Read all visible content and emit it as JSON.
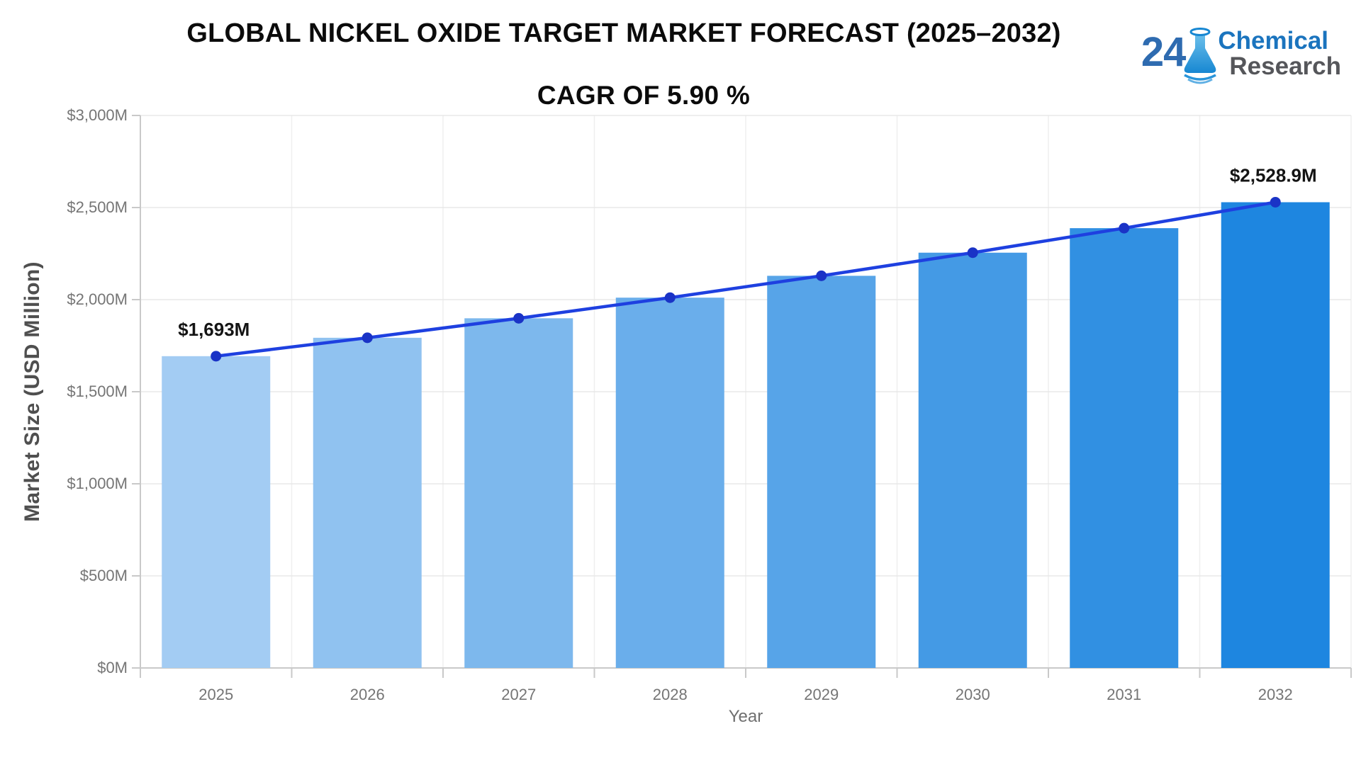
{
  "title": "GLOBAL NICKEL OXIDE TARGET MARKET FORECAST (2025–2032)",
  "subtitle": "CAGR OF 5.90 %",
  "logo": {
    "number": "24",
    "word1": "Chemical",
    "word2": "Research",
    "number_color": "#2E6BB0",
    "word1_color": "#1B74BE",
    "word2_color": "#55565A",
    "flask_color": "#1B8CD6"
  },
  "chart_data": {
    "type": "bar",
    "title": "GLOBAL NICKEL OXIDE TARGET MARKET FORECAST (2025–2032)",
    "subtitle": "CAGR OF 5.90 %",
    "categories": [
      "2025",
      "2026",
      "2027",
      "2028",
      "2029",
      "2030",
      "2031",
      "2032"
    ],
    "series": [
      {
        "name": "Market Size bars",
        "type": "bar",
        "values": [
          1693,
          1792.9,
          1898.7,
          2010.7,
          2129.3,
          2254.9,
          2388.0,
          2528.9
        ]
      },
      {
        "name": "Market Size trend line",
        "type": "line",
        "values": [
          1693,
          1792.9,
          1898.7,
          2010.7,
          2129.3,
          2254.9,
          2388.0,
          2528.9
        ]
      }
    ],
    "annotations": [
      {
        "category": "2025",
        "text": "$1,693M"
      },
      {
        "category": "2032",
        "text": "$2,528.9M"
      }
    ],
    "xlabel": "Year",
    "ylabel": "Market Size (USD Million)",
    "ylim": [
      0,
      3000
    ],
    "ytick_interval": 500,
    "ytick_labels": [
      "$0M",
      "$500M",
      "$1,000M",
      "$1,500M",
      "$2,000M",
      "$2,500M",
      "$3,000M"
    ],
    "grid": true,
    "legend": "none",
    "colors": {
      "bars": [
        "#A3CCF3",
        "#90C2F0",
        "#7DB8ED",
        "#6AAEEB",
        "#57A4E8",
        "#449AE5",
        "#3190E2",
        "#1E86E0"
      ],
      "line": "#1E40E0",
      "marker": "#1A33C6",
      "gridline": "#e8e8e8",
      "axis": "#c9c9c9",
      "tick_label": "#757575",
      "annotation": "#141414"
    }
  }
}
